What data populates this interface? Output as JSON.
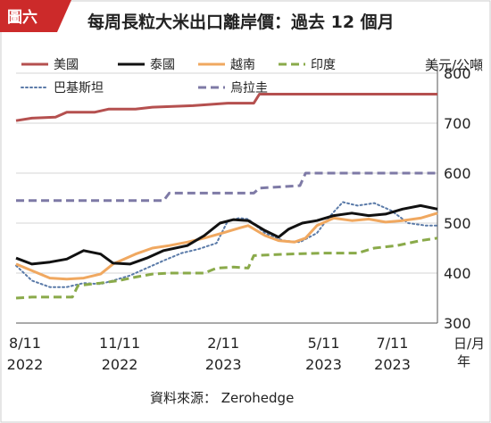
{
  "badge": "圖六",
  "source": "資料來源： Zerohedge",
  "chart_data": {
    "type": "line",
    "title": "每周長粒大米出口離岸價：過去 12 個月",
    "y_unit": "美元/公噸",
    "x_unit": "日/月",
    "x_unit_year": "年",
    "ylim": [
      300,
      800
    ],
    "yticks": [
      300,
      400,
      500,
      600,
      700,
      800
    ],
    "x_range": [
      "2022-08-11",
      "2023-08-20"
    ],
    "xticks": [
      {
        "date": "2022-08-11",
        "label_line1": "8/11",
        "label_line2": "2022"
      },
      {
        "date": "2022-11-11",
        "label_line1": "11/11",
        "label_line2": "2022"
      },
      {
        "date": "2023-02-11",
        "label_line1": "2/11",
        "label_line2": "2023"
      },
      {
        "date": "2023-05-11",
        "label_line1": "5/11",
        "label_line2": "2023"
      },
      {
        "date": "2023-07-11",
        "label_line1": "7/11",
        "label_line2": "2023"
      }
    ],
    "grid": "horizontal",
    "legend_position": "top",
    "series": [
      {
        "name": "美國",
        "color": "#b5504f",
        "style": "solid",
        "width": 3,
        "points": [
          [
            "2022-08-11",
            705
          ],
          [
            "2022-08-25",
            710
          ],
          [
            "2022-09-15",
            712
          ],
          [
            "2022-09-25",
            722
          ],
          [
            "2022-10-20",
            722
          ],
          [
            "2022-11-01",
            728
          ],
          [
            "2022-11-25",
            728
          ],
          [
            "2022-12-10",
            732
          ],
          [
            "2023-01-15",
            735
          ],
          [
            "2023-02-15",
            740
          ],
          [
            "2023-03-10",
            740
          ],
          [
            "2023-03-15",
            758
          ],
          [
            "2023-08-20",
            758
          ]
        ]
      },
      {
        "name": "泰國",
        "color": "#111111",
        "style": "solid",
        "width": 3,
        "points": [
          [
            "2022-08-11",
            430
          ],
          [
            "2022-08-25",
            418
          ],
          [
            "2022-09-10",
            422
          ],
          [
            "2022-09-25",
            428
          ],
          [
            "2022-10-10",
            445
          ],
          [
            "2022-10-25",
            438
          ],
          [
            "2022-11-05",
            420
          ],
          [
            "2022-11-20",
            418
          ],
          [
            "2022-12-05",
            430
          ],
          [
            "2022-12-20",
            445
          ],
          [
            "2023-01-10",
            455
          ],
          [
            "2023-01-25",
            475
          ],
          [
            "2023-02-08",
            500
          ],
          [
            "2023-02-20",
            507
          ],
          [
            "2023-03-05",
            505
          ],
          [
            "2023-03-20",
            485
          ],
          [
            "2023-04-01",
            472
          ],
          [
            "2023-04-10",
            488
          ],
          [
            "2023-04-22",
            500
          ],
          [
            "2023-05-05",
            505
          ],
          [
            "2023-05-20",
            515
          ],
          [
            "2023-06-05",
            520
          ],
          [
            "2023-06-20",
            515
          ],
          [
            "2023-07-05",
            518
          ],
          [
            "2023-07-20",
            528
          ],
          [
            "2023-08-05",
            535
          ],
          [
            "2023-08-20",
            528
          ]
        ]
      },
      {
        "name": "越南",
        "color": "#f0a860",
        "style": "solid",
        "width": 3,
        "points": [
          [
            "2022-08-11",
            418
          ],
          [
            "2022-08-25",
            405
          ],
          [
            "2022-09-10",
            390
          ],
          [
            "2022-09-25",
            388
          ],
          [
            "2022-10-10",
            390
          ],
          [
            "2022-10-25",
            398
          ],
          [
            "2022-11-05",
            418
          ],
          [
            "2022-11-25",
            438
          ],
          [
            "2022-12-10",
            450
          ],
          [
            "2022-12-25",
            455
          ],
          [
            "2023-01-10",
            462
          ],
          [
            "2023-01-25",
            470
          ],
          [
            "2023-02-10",
            480
          ],
          [
            "2023-02-25",
            490
          ],
          [
            "2023-03-05",
            495
          ],
          [
            "2023-03-20",
            475
          ],
          [
            "2023-04-01",
            465
          ],
          [
            "2023-04-15",
            462
          ],
          [
            "2023-04-25",
            470
          ],
          [
            "2023-05-05",
            495
          ],
          [
            "2023-05-20",
            510
          ],
          [
            "2023-06-05",
            505
          ],
          [
            "2023-06-20",
            508
          ],
          [
            "2023-07-05",
            502
          ],
          [
            "2023-07-20",
            505
          ],
          [
            "2023-08-05",
            510
          ],
          [
            "2023-08-20",
            520
          ]
        ]
      },
      {
        "name": "印度",
        "color": "#8aaa4a",
        "style": "dashed",
        "width": 3,
        "points": [
          [
            "2022-08-11",
            350
          ],
          [
            "2022-08-25",
            352
          ],
          [
            "2022-09-15",
            352
          ],
          [
            "2022-09-30",
            352
          ],
          [
            "2022-10-05",
            375
          ],
          [
            "2022-10-25",
            380
          ],
          [
            "2022-11-10",
            385
          ],
          [
            "2022-11-25",
            392
          ],
          [
            "2022-12-10",
            398
          ],
          [
            "2022-12-25",
            400
          ],
          [
            "2023-01-10",
            400
          ],
          [
            "2023-01-25",
            400
          ],
          [
            "2023-02-05",
            410
          ],
          [
            "2023-02-20",
            412
          ],
          [
            "2023-03-05",
            410
          ],
          [
            "2023-03-10",
            435
          ],
          [
            "2023-04-10",
            438
          ],
          [
            "2023-05-10",
            440
          ],
          [
            "2023-06-10",
            440
          ],
          [
            "2023-06-25",
            450
          ],
          [
            "2023-07-15",
            455
          ],
          [
            "2023-08-05",
            465
          ],
          [
            "2023-08-20",
            470
          ]
        ]
      },
      {
        "name": "巴基斯坦",
        "color": "#5a7aa8",
        "style": "dotted",
        "width": 2,
        "points": [
          [
            "2022-08-11",
            415
          ],
          [
            "2022-08-25",
            385
          ],
          [
            "2022-09-10",
            372
          ],
          [
            "2022-09-25",
            372
          ],
          [
            "2022-10-10",
            380
          ],
          [
            "2022-10-25",
            378
          ],
          [
            "2022-11-05",
            385
          ],
          [
            "2022-11-20",
            395
          ],
          [
            "2022-12-05",
            410
          ],
          [
            "2022-12-20",
            425
          ],
          [
            "2023-01-05",
            440
          ],
          [
            "2023-01-20",
            448
          ],
          [
            "2023-02-05",
            460
          ],
          [
            "2023-02-15",
            505
          ],
          [
            "2023-02-25",
            510
          ],
          [
            "2023-03-05",
            508
          ],
          [
            "2023-03-20",
            480
          ],
          [
            "2023-04-05",
            465
          ],
          [
            "2023-04-20",
            462
          ],
          [
            "2023-05-05",
            480
          ],
          [
            "2023-05-15",
            510
          ],
          [
            "2023-05-28",
            542
          ],
          [
            "2023-06-10",
            535
          ],
          [
            "2023-06-25",
            540
          ],
          [
            "2023-07-10",
            525
          ],
          [
            "2023-07-25",
            500
          ],
          [
            "2023-08-10",
            495
          ],
          [
            "2023-08-20",
            495
          ]
        ]
      },
      {
        "name": "烏拉圭",
        "color": "#7e7aa6",
        "style": "dashed",
        "width": 3,
        "points": [
          [
            "2022-08-11",
            545
          ],
          [
            "2022-12-20",
            545
          ],
          [
            "2022-12-25",
            560
          ],
          [
            "2023-03-10",
            560
          ],
          [
            "2023-03-15",
            570
          ],
          [
            "2023-04-20",
            575
          ],
          [
            "2023-04-25",
            600
          ],
          [
            "2023-08-20",
            600
          ]
        ]
      }
    ]
  }
}
